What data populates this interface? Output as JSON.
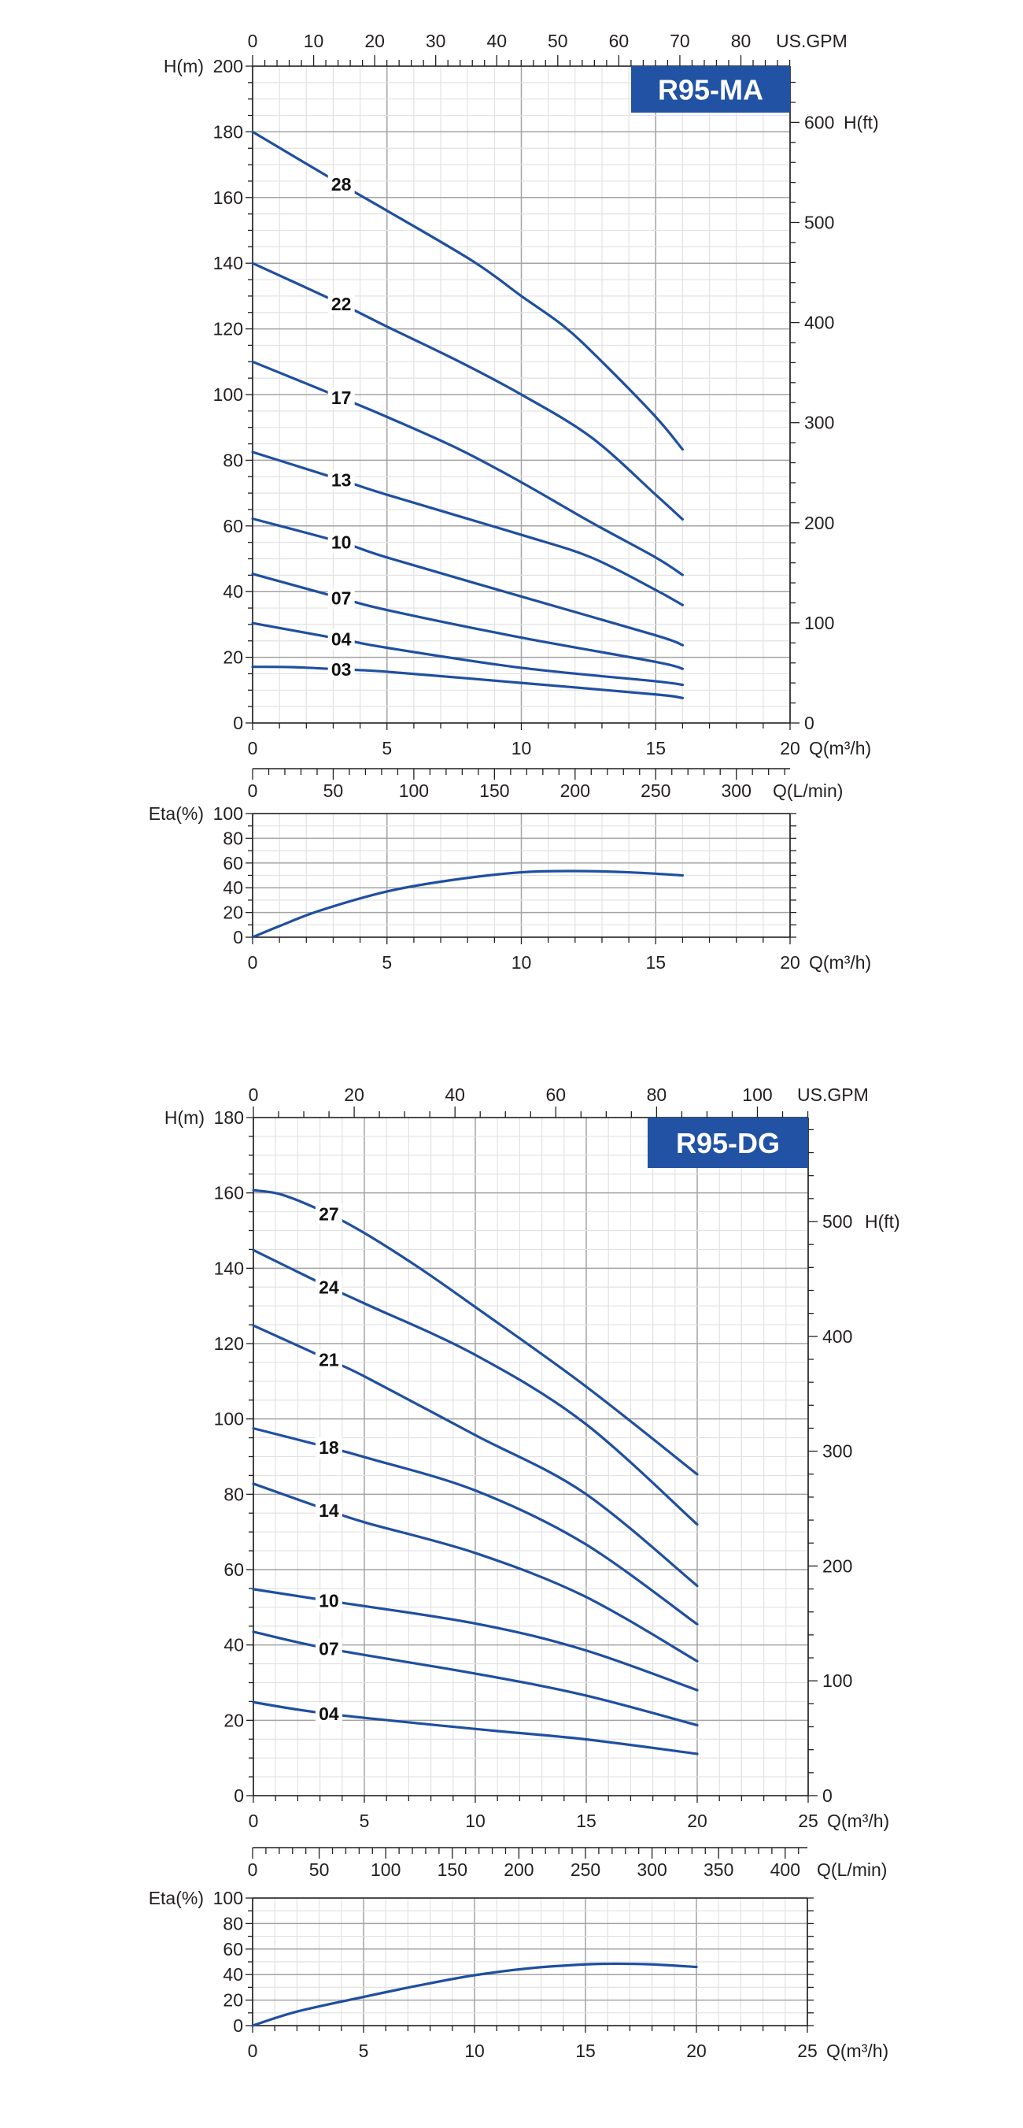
{
  "colors": {
    "curve": "#1f4fa0",
    "badge": "#2152a3",
    "grid_major": "#a3a3a3",
    "grid_minor": "#e2e2e2",
    "axis": "#231f20"
  },
  "chart_data": [
    {
      "type": "line",
      "title": "R95-MA",
      "xlabel": "Q(m³/h)",
      "ylabel": "H(m)",
      "xlim": [
        0,
        20
      ],
      "ylim": [
        0,
        200
      ],
      "grid": true,
      "x_ticks": [
        "0",
        "5",
        "10",
        "15",
        "20"
      ],
      "y_ticks": [
        "0",
        "20",
        "40",
        "60",
        "80",
        "100",
        "120",
        "140",
        "160",
        "180",
        "200"
      ],
      "secondary_x": {
        "label": "US.GPM",
        "ticks": [
          "0",
          "10",
          "20",
          "30",
          "40",
          "50",
          "60",
          "70",
          "80"
        ]
      },
      "secondary_y": {
        "label": "H(ft)",
        "ticks": [
          "0",
          "100",
          "200",
          "300",
          "400",
          "500",
          "600"
        ]
      },
      "series": [
        {
          "name": "28",
          "x": [
            0,
            3.3,
            5,
            8.2,
            10,
            11.6,
            13,
            15,
            16
          ],
          "y": [
            180,
            164,
            156,
            140.6,
            130,
            120.7,
            110,
            93.2,
            83.3
          ]
        },
        {
          "name": "22",
          "x": [
            0,
            3.3,
            5,
            7.7,
            10,
            12.6,
            15,
            16
          ],
          "y": [
            140,
            127.6,
            120.7,
            110,
            100,
            87,
            69.5,
            62
          ]
        },
        {
          "name": "17",
          "x": [
            0,
            3.3,
            5,
            7.7,
            10,
            12.6,
            15,
            16
          ],
          "y": [
            110,
            99,
            93.2,
            83.3,
            73.3,
            61.1,
            50.4,
            45.1
          ]
        },
        {
          "name": "13",
          "x": [
            0,
            3.3,
            5,
            10,
            12.6,
            15,
            16
          ],
          "y": [
            82.5,
            74,
            69.5,
            57.3,
            50.4,
            40.5,
            35.9
          ]
        },
        {
          "name": "10",
          "x": [
            0,
            3.3,
            5,
            10,
            15,
            16
          ],
          "y": [
            62.2,
            55,
            50.4,
            38.5,
            26.7,
            23.7
          ]
        },
        {
          "name": "07",
          "x": [
            0,
            3.3,
            5,
            10,
            15,
            16
          ],
          "y": [
            45.4,
            38,
            34.4,
            26,
            18.6,
            16.5
          ]
        },
        {
          "name": "04",
          "x": [
            0,
            3.3,
            5,
            10,
            15,
            16
          ],
          "y": [
            30.4,
            25.5,
            22.9,
            16.8,
            12.7,
            11.6
          ]
        },
        {
          "name": "03",
          "x": [
            0,
            1.5,
            3.3,
            5,
            10,
            15,
            16
          ],
          "y": [
            17.1,
            17,
            16.3,
            15.6,
            12.2,
            8.7,
            7.6
          ]
        }
      ]
    },
    {
      "type": "line",
      "xlabel": "Q(m³/h)",
      "ylabel": "Eta(%)",
      "xlim": [
        0,
        20
      ],
      "ylim": [
        0,
        100
      ],
      "grid": true,
      "x_ticks": [
        "0",
        "5",
        "10",
        "15",
        "20"
      ],
      "y_ticks": [
        "0",
        "20",
        "40",
        "60",
        "80",
        "100"
      ],
      "secondary_x": {
        "label": "Q(L/min)",
        "ticks": [
          "0",
          "50",
          "100",
          "150",
          "200",
          "250",
          "300"
        ]
      },
      "series": [
        {
          "x": [
            0,
            1,
            2.5,
            5,
            7.5,
            10,
            12,
            14,
            16
          ],
          "y": [
            0,
            9,
            21.5,
            37,
            46.5,
            52.5,
            53.5,
            52.5,
            50
          ]
        }
      ]
    },
    {
      "type": "line",
      "title": "R95-DG",
      "xlabel": "Q(m³/h)",
      "ylabel": "H(m)",
      "xlim": [
        0,
        25
      ],
      "ylim": [
        0,
        180
      ],
      "grid": true,
      "x_ticks": [
        "0",
        "5",
        "10",
        "15",
        "20",
        "25"
      ],
      "y_ticks": [
        "0",
        "20",
        "40",
        "60",
        "80",
        "100",
        "120",
        "140",
        "160",
        "180"
      ],
      "secondary_x": {
        "label": "US.GPM",
        "ticks": [
          "0",
          "20",
          "40",
          "60",
          "80",
          "100"
        ]
      },
      "secondary_y": {
        "label": "H(ft)",
        "ticks": [
          "0",
          "100",
          "200",
          "300",
          "400",
          "500"
        ]
      },
      "series": [
        {
          "name": "27",
          "x": [
            0,
            1.3,
            3.4,
            5.1,
            7.5,
            10,
            14.9,
            20
          ],
          "y": [
            160.7,
            159.5,
            154.4,
            149,
            140,
            129.7,
            109,
            85.3
          ]
        },
        {
          "name": "24",
          "x": [
            0,
            3.4,
            5.1,
            10,
            14.9,
            20
          ],
          "y": [
            144.8,
            135,
            130.4,
            117,
            99,
            72
          ]
        },
        {
          "name": "21",
          "x": [
            0,
            3.4,
            5.1,
            10,
            14.9,
            20
          ],
          "y": [
            124.8,
            115.7,
            111,
            95.7,
            80.4,
            55.7
          ]
        },
        {
          "name": "18",
          "x": [
            0,
            3.4,
            5.1,
            10,
            14.9,
            20
          ],
          "y": [
            97.5,
            92.4,
            89.7,
            81,
            67,
            45.5
          ]
        },
        {
          "name": "14",
          "x": [
            0,
            3.4,
            5.1,
            10,
            14.9,
            20
          ],
          "y": [
            82.8,
            75.7,
            72.4,
            64.4,
            53,
            35.7
          ]
        },
        {
          "name": "10",
          "x": [
            0,
            3.4,
            10,
            14.9,
            20
          ],
          "y": [
            54.8,
            51.7,
            45.7,
            38.7,
            28
          ]
        },
        {
          "name": "07",
          "x": [
            0,
            3.4,
            10,
            14.9,
            20
          ],
          "y": [
            43.5,
            39,
            32.4,
            26.7,
            18.7
          ]
        },
        {
          "name": "04",
          "x": [
            0,
            3.4,
            10,
            14.9,
            20
          ],
          "y": [
            24.8,
            21.7,
            17.7,
            15,
            11.1
          ]
        }
      ]
    },
    {
      "type": "line",
      "xlabel": "Q(m³/h)",
      "ylabel": "Eta(%)",
      "xlim": [
        0,
        25
      ],
      "ylim": [
        0,
        100
      ],
      "grid": true,
      "x_ticks": [
        "0",
        "5",
        "10",
        "15",
        "20",
        "25"
      ],
      "y_ticks": [
        "0",
        "20",
        "40",
        "60",
        "80",
        "100"
      ],
      "secondary_x": {
        "label": "Q(L/min)",
        "ticks": [
          "0",
          "50",
          "100",
          "150",
          "200",
          "250",
          "300",
          "350",
          "400"
        ]
      },
      "series": [
        {
          "x": [
            0,
            2,
            5,
            7.5,
            10,
            12.5,
            15,
            16.5,
            18,
            20
          ],
          "y": [
            0,
            11,
            22.5,
            31.5,
            39.5,
            45,
            48,
            48.5,
            48,
            46
          ]
        }
      ]
    }
  ]
}
